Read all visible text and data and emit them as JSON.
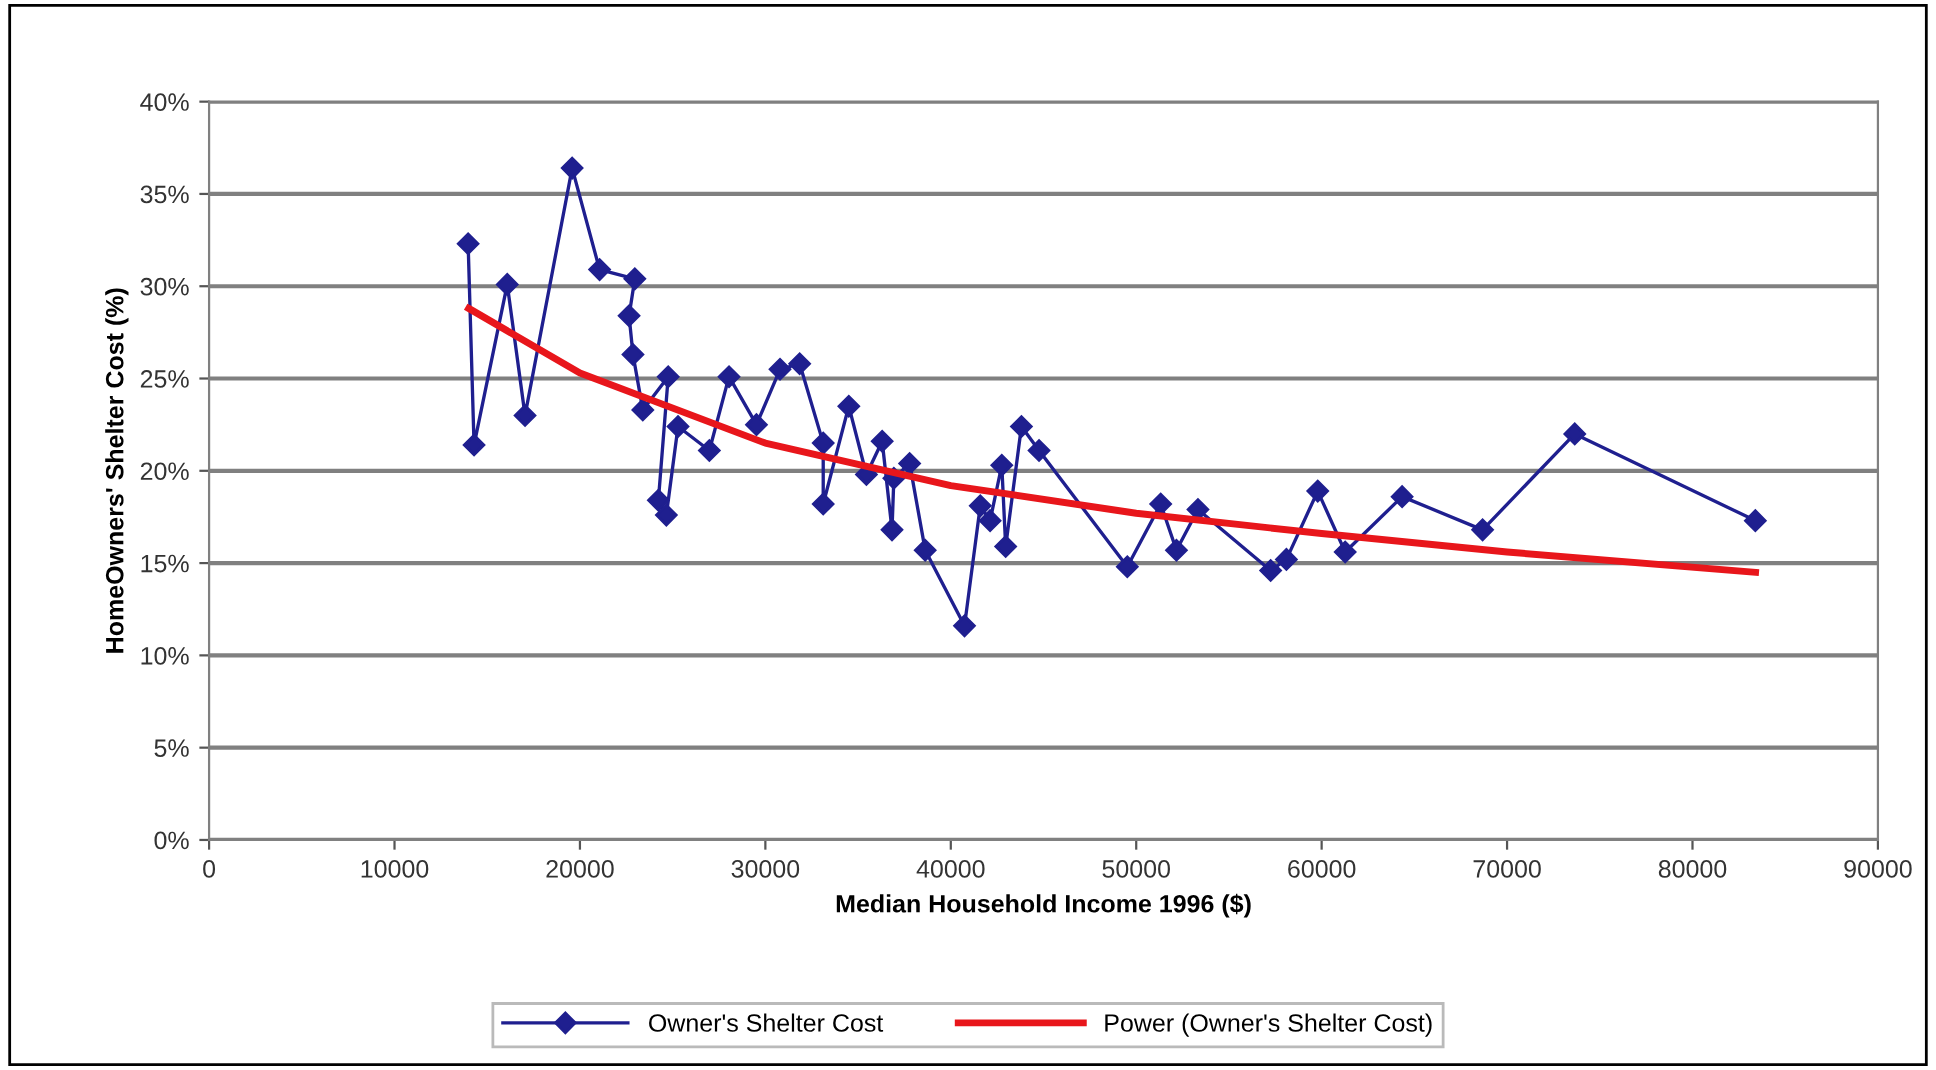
{
  "chart_data": {
    "type": "line",
    "xlabel": "Median Household Income 1996 ($)",
    "ylabel": "HomeOwners' Shelter Cost (%)",
    "xlim": [
      0,
      90000
    ],
    "xticks": [
      0,
      10000,
      20000,
      30000,
      40000,
      50000,
      60000,
      70000,
      80000,
      90000
    ],
    "ylim": [
      0,
      40
    ],
    "yticks": [
      {
        "value": 0,
        "label": "0%"
      },
      {
        "value": 5,
        "label": "5%"
      },
      {
        "value": 10,
        "label": "10%"
      },
      {
        "value": 15,
        "label": "15%"
      },
      {
        "value": 20,
        "label": "20%"
      },
      {
        "value": 25,
        "label": "25%"
      },
      {
        "value": 30,
        "label": "30%"
      },
      {
        "value": 35,
        "label": "35%"
      },
      {
        "value": 40,
        "label": "40%"
      }
    ],
    "grid": "y",
    "legend": "bottom",
    "series": [
      {
        "name": "Owner's Shelter Cost",
        "color": "#1f1f8f",
        "marker": "diamond",
        "line_style": "solid",
        "x": [
          13970,
          14290,
          16080,
          17040,
          19580,
          21060,
          22960,
          22650,
          22860,
          23390,
          24760,
          24230,
          24660,
          25290,
          26980,
          28040,
          29520,
          30790,
          31850,
          33120,
          33120,
          34500,
          35450,
          36300,
          36830,
          36930,
          37780,
          38620,
          40740,
          41590,
          42120,
          42750,
          42960,
          43810,
          44760,
          49520,
          51320,
          52170,
          53330,
          57250,
          58100,
          59790,
          61270,
          64340,
          68680,
          73650,
          83390
        ],
        "values": [
          32.3,
          21.4,
          30.1,
          23.0,
          36.4,
          30.9,
          30.4,
          28.4,
          26.3,
          23.3,
          25.1,
          18.4,
          17.6,
          22.4,
          21.1,
          25.1,
          22.5,
          25.5,
          25.8,
          21.5,
          18.2,
          23.5,
          19.8,
          21.6,
          16.8,
          19.6,
          20.4,
          15.7,
          11.6,
          18.1,
          17.3,
          20.3,
          15.9,
          22.4,
          21.1,
          14.8,
          18.2,
          15.7,
          17.9,
          14.6,
          15.2,
          18.9,
          15.6,
          18.6,
          16.8,
          22.0,
          17.3
        ]
      },
      {
        "name": "Power (Owner's Shelter Cost)",
        "color": "#e8161b",
        "marker": "none",
        "line_style": "solid",
        "x": [
          14000,
          20000,
          30000,
          40000,
          50000,
          60000,
          70000,
          83400
        ],
        "values": [
          28.8,
          25.3,
          21.5,
          19.2,
          17.7,
          16.6,
          15.6,
          14.5
        ]
      }
    ]
  }
}
